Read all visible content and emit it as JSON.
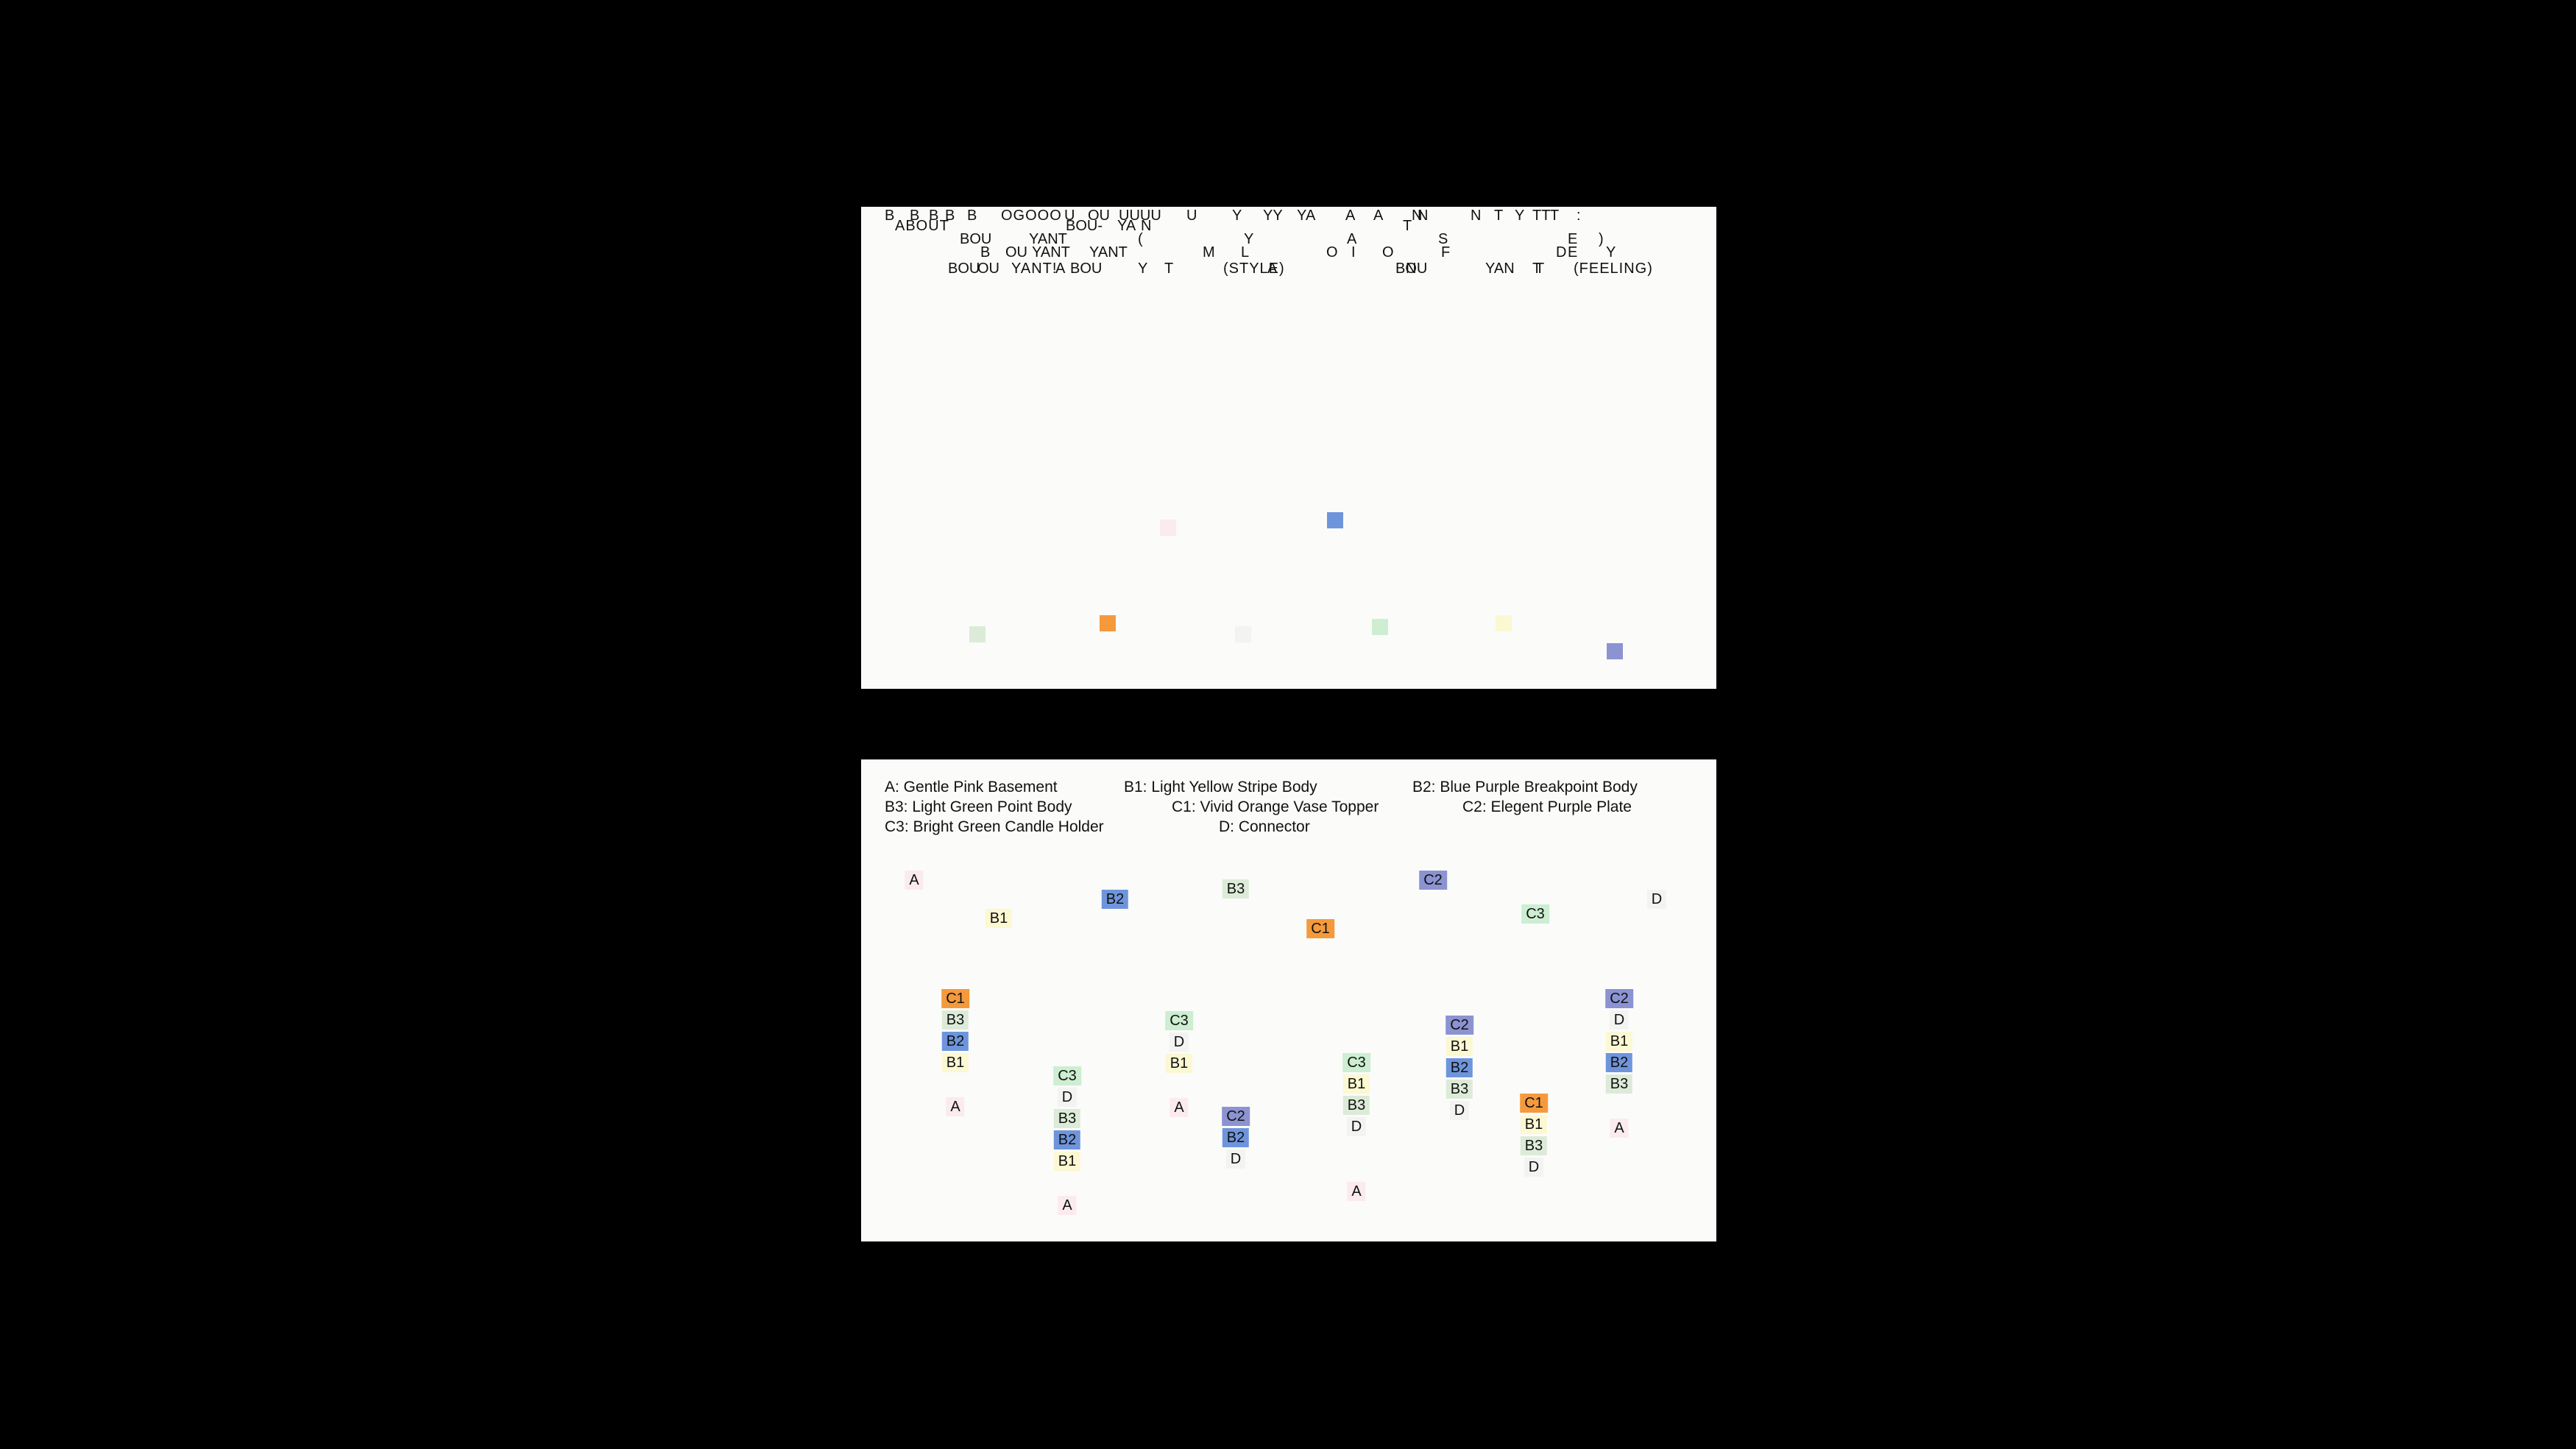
{
  "colors": {
    "A": "#fbeaee",
    "B1": "#fbf8d2",
    "B2": "#6e95dc",
    "B3": "#dcebd8",
    "C1": "#f59a3c",
    "C2": "#8b93d2",
    "C3": "#cdeed1",
    "D": "#f3f3f1"
  },
  "scene_text": {
    "row1": [
      "B",
      "B",
      "B",
      "B",
      "B",
      "OGOOO",
      "U",
      "OU",
      "UUUU",
      "U",
      "Y",
      "YY",
      "Y",
      "A",
      "A",
      "A",
      "N",
      "N",
      "N",
      "T",
      "Y",
      "TT",
      "T",
      ":"
    ],
    "row2": [
      "ABOUT",
      "BOU-",
      "YA",
      "N",
      "T"
    ],
    "row3": [
      "BOU",
      "YANT",
      "(",
      "Y",
      "A",
      "S",
      "E",
      ")"
    ],
    "row4": [
      "B",
      "OU",
      "YANT",
      "YANT",
      "M",
      "L",
      "O",
      "I",
      "O",
      "F",
      "D",
      "E",
      "Y"
    ],
    "row5": [
      "BOU",
      "OU",
      "YANT!",
      "A",
      "BOU",
      "Y",
      "T",
      "(STYLE)",
      "A",
      "BOU",
      "N",
      "YAN",
      "T",
      "(FEELING)",
      "T"
    ]
  },
  "legend": {
    "lines": [
      [
        "A: Gentle Pink Basement",
        "B1: Light Yellow Stripe Body",
        "B2: Blue Purple Breakpoint Body"
      ],
      [
        "B3: Light Green Point Body",
        "C1: Vivid Orange Vase Topper",
        "C2: Elegent Purple Plate"
      ],
      [
        "C3: Bright Green Candle Holder",
        "D: Connector"
      ]
    ]
  },
  "parts": [
    {
      "label": "A",
      "key": "A"
    },
    {
      "label": "B1",
      "key": "B1"
    },
    {
      "label": "B2",
      "key": "B2"
    },
    {
      "label": "B3",
      "key": "B3"
    },
    {
      "label": "C1",
      "key": "C1"
    },
    {
      "label": "C2",
      "key": "C2"
    },
    {
      "label": "C3",
      "key": "C3"
    },
    {
      "label": "D",
      "key": "D"
    }
  ],
  "vases": [
    [
      "C1",
      "B3",
      "B2",
      "B1",
      "A"
    ],
    [
      "C3",
      "D",
      "B3",
      "B2",
      "B1",
      "A"
    ],
    [
      "C3",
      "D",
      "B1",
      "A"
    ],
    [
      "C2",
      "B2",
      "D"
    ],
    [
      "C3",
      "B1",
      "B3",
      "D",
      "A"
    ],
    [
      "C2",
      "B1",
      "B2",
      "B3",
      "D"
    ],
    [
      "C1",
      "B1",
      "B3",
      "D"
    ],
    [
      "C2",
      "D",
      "B1",
      "B2",
      "B3",
      "A"
    ]
  ]
}
